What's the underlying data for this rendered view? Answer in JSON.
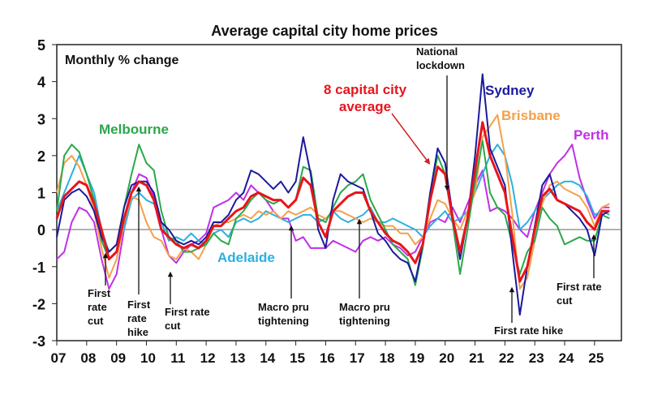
{
  "chart_data": {
    "type": "line",
    "title": "Average capital city home prices",
    "ylabel": "Monthly % change",
    "xlabel": "",
    "ylim": [
      -3,
      5
    ],
    "xlim": [
      2007,
      2025.9
    ],
    "yticks": [
      5,
      4,
      3,
      2,
      1,
      0,
      -1,
      -2,
      -3
    ],
    "xtick_labels": [
      "07",
      "08",
      "09",
      "10",
      "11",
      "12",
      "13",
      "14",
      "15",
      "16",
      "17",
      "18",
      "19",
      "20",
      "21",
      "22",
      "23",
      "24",
      "25"
    ],
    "x_start": 2007,
    "x_step": 0.25,
    "grid": false,
    "series": [
      {
        "name": "Perth",
        "color": "#c030e8",
        "values": [
          -0.8,
          -0.6,
          0.2,
          0.6,
          0.5,
          0.2,
          -0.8,
          -1.6,
          -1.2,
          0.0,
          1.0,
          1.5,
          1.4,
          0.9,
          0.0,
          -0.7,
          -0.9,
          -0.6,
          -0.4,
          -0.3,
          -0.1,
          0.6,
          0.7,
          0.8,
          1.0,
          0.8,
          1.2,
          1.0,
          0.8,
          0.5,
          0.3,
          0.3,
          -0.3,
          -0.2,
          -0.5,
          -0.5,
          -0.5,
          -0.3,
          -0.4,
          -0.5,
          -0.6,
          -0.3,
          -0.2,
          -0.3,
          -0.2,
          -0.4,
          -0.5,
          -0.7,
          -0.6,
          -0.2,
          0.2,
          0.3,
          0.2,
          0.6,
          0.2,
          0.7,
          1.2,
          1.6,
          0.5,
          0.6,
          0.5,
          0.3,
          0.0,
          -0.2,
          0.5,
          1.0,
          1.5,
          1.8,
          2.0,
          2.3,
          1.4,
          0.8,
          0.3,
          0.6,
          0.6
        ]
      },
      {
        "name": "Adelaide",
        "color": "#2bb0e0",
        "values": [
          0.5,
          1.0,
          1.5,
          2.0,
          1.5,
          1.0,
          0.0,
          -0.6,
          -0.4,
          0.0,
          0.8,
          1.0,
          0.8,
          0.7,
          0.2,
          -0.3,
          -0.2,
          -0.3,
          -0.1,
          -0.3,
          -0.4,
          -0.1,
          0.0,
          -0.2,
          0.2,
          0.3,
          0.2,
          0.3,
          0.5,
          0.4,
          0.3,
          0.2,
          0.3,
          0.4,
          0.4,
          0.2,
          0.3,
          0.5,
          0.3,
          0.2,
          0.3,
          0.4,
          0.6,
          0.2,
          0.2,
          0.3,
          0.2,
          0.1,
          0.0,
          -0.2,
          0.1,
          0.3,
          0.5,
          0.2,
          0.3,
          0.5,
          1.0,
          1.5,
          2.0,
          2.3,
          2.0,
          1.2,
          0.0,
          0.2,
          0.5,
          0.8,
          1.0,
          1.2,
          1.3,
          1.3,
          1.2,
          0.9,
          0.4,
          0.5,
          0.4
        ]
      },
      {
        "name": "Brisbane",
        "color": "#f5a04a",
        "values": [
          1.0,
          1.8,
          2.0,
          1.7,
          1.2,
          0.5,
          -0.5,
          -1.3,
          -0.8,
          0.2,
          0.9,
          0.8,
          0.2,
          -0.2,
          -0.3,
          -0.7,
          -0.8,
          -0.5,
          -0.6,
          -0.8,
          -0.4,
          0.1,
          0.2,
          0.2,
          0.3,
          0.4,
          0.3,
          0.5,
          0.4,
          0.5,
          0.3,
          0.5,
          0.4,
          0.5,
          0.6,
          0.4,
          0.3,
          0.5,
          0.5,
          0.4,
          0.3,
          0.2,
          0.3,
          0.2,
          0.1,
          0.1,
          -0.1,
          -0.1,
          -0.4,
          -0.2,
          0.3,
          0.8,
          0.7,
          0.3,
          0.0,
          0.5,
          1.0,
          2.5,
          2.8,
          3.1,
          2.0,
          0.4,
          -1.6,
          -1.3,
          -0.3,
          0.7,
          1.2,
          1.3,
          1.1,
          1.0,
          0.9,
          0.6,
          0.1,
          0.6,
          0.7
        ]
      },
      {
        "name": "Melbourne",
        "color": "#2ba84a",
        "values": [
          0.5,
          2.0,
          2.3,
          2.1,
          1.5,
          0.8,
          -0.3,
          -0.8,
          -0.6,
          0.6,
          1.5,
          2.3,
          1.8,
          1.6,
          0.5,
          -0.2,
          -0.3,
          -0.6,
          -0.6,
          -0.5,
          -0.4,
          -0.1,
          -0.3,
          -0.4,
          0.3,
          0.5,
          0.8,
          1.0,
          0.8,
          0.7,
          0.8,
          0.6,
          0.8,
          1.7,
          1.6,
          0.3,
          0.2,
          0.6,
          1.0,
          1.2,
          1.3,
          1.5,
          0.8,
          0.4,
          0.0,
          -0.4,
          -0.6,
          -0.8,
          -1.5,
          -0.5,
          1.0,
          2.0,
          1.5,
          0.2,
          -1.2,
          0.0,
          1.3,
          2.4,
          1.0,
          0.6,
          0.4,
          -0.4,
          -1.2,
          -0.6,
          -0.3,
          0.6,
          0.3,
          0.1,
          -0.4,
          -0.3,
          -0.2,
          -0.3,
          -0.3,
          0.4,
          0.3
        ]
      },
      {
        "name": "Sydney",
        "color": "#1a1a9c",
        "values": [
          -0.2,
          0.8,
          1.0,
          1.1,
          0.9,
          0.5,
          -0.2,
          -0.6,
          -0.4,
          0.6,
          1.2,
          1.3,
          1.3,
          1.0,
          0.2,
          0.0,
          -0.3,
          -0.4,
          -0.3,
          -0.4,
          -0.2,
          0.2,
          0.2,
          0.4,
          0.8,
          1.0,
          1.6,
          1.5,
          1.3,
          1.1,
          1.3,
          1.0,
          1.3,
          2.5,
          1.5,
          0.0,
          -0.5,
          0.8,
          1.5,
          1.3,
          1.2,
          1.1,
          0.5,
          -0.1,
          -0.3,
          -0.6,
          -0.8,
          -0.9,
          -1.4,
          -0.4,
          1.0,
          2.2,
          1.8,
          0.4,
          -0.8,
          0.3,
          2.0,
          4.2,
          2.2,
          1.7,
          1.2,
          -0.6,
          -2.3,
          -1.0,
          0.1,
          1.2,
          1.5,
          0.8,
          0.7,
          0.5,
          0.3,
          0.0,
          -0.7,
          0.4,
          0.5
        ]
      },
      {
        "name": "8 capital city average",
        "color": "#e8141c",
        "values": [
          0.3,
          0.9,
          1.1,
          1.3,
          1.2,
          0.7,
          0.0,
          -0.8,
          -0.6,
          0.3,
          1.0,
          1.3,
          1.2,
          0.8,
          0.0,
          -0.2,
          -0.4,
          -0.5,
          -0.4,
          -0.5,
          -0.3,
          0.1,
          0.1,
          0.3,
          0.5,
          0.6,
          0.9,
          1.0,
          0.9,
          0.8,
          0.8,
          0.6,
          0.8,
          1.4,
          1.2,
          0.2,
          -0.2,
          0.5,
          0.7,
          0.9,
          1.0,
          1.0,
          0.5,
          0.2,
          -0.1,
          -0.3,
          -0.4,
          -0.6,
          -0.9,
          -0.4,
          0.8,
          1.7,
          1.5,
          0.3,
          -0.6,
          0.3,
          1.6,
          2.9,
          2.0,
          1.5,
          1.0,
          -0.2,
          -1.4,
          -1.0,
          0.0,
          0.9,
          1.1,
          0.8,
          0.7,
          0.6,
          0.5,
          0.2,
          0.0,
          0.5,
          0.5
        ]
      }
    ],
    "series_labels": {
      "melbourne": "Melbourne",
      "adelaide": "Adelaide",
      "sydney": "Sydney",
      "brisbane": "Brisbane",
      "perth": "Perth",
      "average_line1": "8 capital city",
      "average_line2": "average"
    },
    "annotations": {
      "rate_cut_2008": [
        "First",
        "rate",
        "cut"
      ],
      "rate_hike_2009": [
        "First",
        "rate",
        "hike"
      ],
      "rate_cut_2010": [
        "First rate",
        "cut"
      ],
      "macro_pru_2014": [
        "Macro pru",
        "tightening"
      ],
      "macro_pru_2017": [
        "Macro pru",
        "tightening"
      ],
      "national_lockdown": [
        "National",
        "lockdown"
      ],
      "rate_hike_2022": [
        "First rate hike"
      ],
      "rate_cut_2025": [
        "First rate",
        "cut"
      ]
    }
  }
}
